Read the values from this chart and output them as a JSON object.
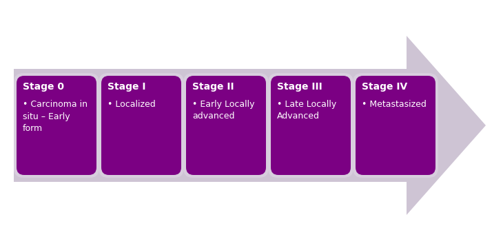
{
  "background_color": "#ffffff",
  "arrow_color": "#cec4d4",
  "box_color": "#7b0083",
  "box_border_color": "#d8cede",
  "text_color": "#ffffff",
  "stages": [
    {
      "title": "Stage 0",
      "bullet": "Carcinoma in\nsitu – Early\nform"
    },
    {
      "title": "Stage I",
      "bullet": "Localized"
    },
    {
      "title": "Stage II",
      "bullet": "Early Locally\nadvanced"
    },
    {
      "title": "Stage III",
      "bullet": "Late Locally\nAdvanced"
    },
    {
      "title": "Stage IV",
      "bullet": "Metastasized"
    }
  ],
  "figsize": [
    7.3,
    3.6
  ],
  "dpi": 100
}
